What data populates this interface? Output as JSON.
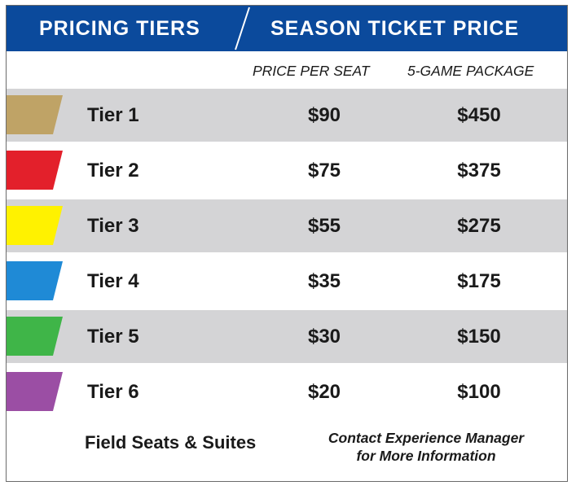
{
  "header": {
    "left_title": "PRICING TIERS",
    "right_title": "SEASON TICKET PRICE",
    "background_color": "#0b4a9c"
  },
  "columns": {
    "price_per_seat": "PRICE PER SEAT",
    "package": "5-GAME PACKAGE"
  },
  "tiers": [
    {
      "label": "Tier 1",
      "price_per_seat": "$90",
      "package_price": "$450",
      "color": "#bfa366"
    },
    {
      "label": "Tier 2",
      "price_per_seat": "$75",
      "package_price": "$375",
      "color": "#e3202b"
    },
    {
      "label": "Tier 3",
      "price_per_seat": "$55",
      "package_price": "$275",
      "color": "#fff200"
    },
    {
      "label": "Tier 4",
      "price_per_seat": "$35",
      "package_price": "$175",
      "color": "#1f8ad6"
    },
    {
      "label": "Tier 5",
      "price_per_seat": "$30",
      "package_price": "$150",
      "color": "#3fb548"
    },
    {
      "label": "Tier 6",
      "price_per_seat": "$20",
      "package_price": "$100",
      "color": "#9b4ea4"
    }
  ],
  "footer": {
    "left": "Field Seats & Suites",
    "right_line1": "Contact Experience Manager",
    "right_line2": "for More Information"
  }
}
